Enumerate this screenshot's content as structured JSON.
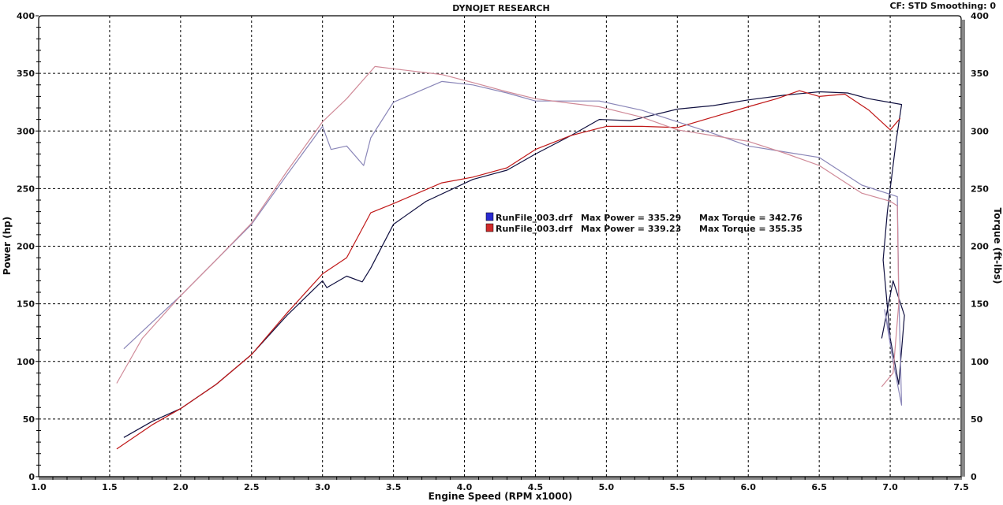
{
  "header": {
    "title": "DYNOJET RESEARCH",
    "settings": "CF: STD  Smoothing: 0"
  },
  "legend": [
    {
      "file": "RunFile_003.drf",
      "max_power_label": "Max Power = 335.29",
      "max_torque_label": "Max Torque = 342.76",
      "color": "#2a2ad0"
    },
    {
      "file": "RunFile_003.drf",
      "max_power_label": "Max Power = 339.23",
      "max_torque_label": "Max Torque = 355.35",
      "color": "#d02a2a"
    }
  ],
  "chart_data": {
    "type": "line",
    "title": "DYNOJET RESEARCH",
    "xlabel": "Engine Speed (RPM x1000)",
    "ylabel": "Power (hp)",
    "y2label": "Torque (ft-lbs)",
    "xlim": [
      1.0,
      7.5
    ],
    "ylim": [
      0,
      400
    ],
    "y2lim": [
      0,
      400
    ],
    "xticks": [
      "1.0",
      "1.5",
      "2.0",
      "2.5",
      "3.0",
      "3.5",
      "4.0",
      "4.5",
      "5.0",
      "5.5",
      "6.0",
      "6.5",
      "7.0",
      "7.5"
    ],
    "yticks": [
      "0",
      "50",
      "100",
      "150",
      "200",
      "250",
      "300",
      "350",
      "400"
    ],
    "grid": true,
    "legend_position": "center",
    "series": [
      {
        "name": "RunFile_003.drf Power",
        "axis": "left",
        "color": "#101040",
        "points": [
          [
            1.6,
            34
          ],
          [
            1.8,
            48
          ],
          [
            2.0,
            59
          ],
          [
            2.25,
            80
          ],
          [
            2.5,
            106
          ],
          [
            2.75,
            140
          ],
          [
            3.0,
            170
          ],
          [
            3.03,
            164
          ],
          [
            3.17,
            174
          ],
          [
            3.28,
            169
          ],
          [
            3.34,
            181
          ],
          [
            3.5,
            219
          ],
          [
            3.73,
            239
          ],
          [
            4.06,
            258
          ],
          [
            4.3,
            266
          ],
          [
            4.5,
            280
          ],
          [
            4.75,
            296
          ],
          [
            4.95,
            310
          ],
          [
            5.17,
            309
          ],
          [
            5.5,
            319
          ],
          [
            5.75,
            322
          ],
          [
            6.0,
            327
          ],
          [
            6.25,
            331
          ],
          [
            6.5,
            334
          ],
          [
            6.7,
            333
          ],
          [
            6.85,
            328
          ],
          [
            7.08,
            323
          ],
          [
            7.04,
            290
          ],
          [
            6.98,
            230
          ],
          [
            6.95,
            188
          ],
          [
            7.0,
            120
          ],
          [
            7.06,
            80
          ],
          [
            7.1,
            140
          ],
          [
            7.02,
            170
          ],
          [
            6.94,
            120
          ]
        ]
      },
      {
        "name": "RunFile_003.drf Power",
        "axis": "left",
        "color": "#c01818",
        "points": [
          [
            1.55,
            24
          ],
          [
            1.8,
            45
          ],
          [
            2.0,
            59
          ],
          [
            2.25,
            80
          ],
          [
            2.5,
            106
          ],
          [
            2.75,
            142
          ],
          [
            3.0,
            176
          ],
          [
            3.17,
            190
          ],
          [
            3.34,
            229
          ],
          [
            3.5,
            237
          ],
          [
            3.84,
            255
          ],
          [
            4.06,
            260
          ],
          [
            4.3,
            268
          ],
          [
            4.5,
            284
          ],
          [
            4.75,
            296
          ],
          [
            5.0,
            304
          ],
          [
            5.25,
            304
          ],
          [
            5.5,
            303
          ],
          [
            5.75,
            312
          ],
          [
            6.0,
            321
          ],
          [
            6.2,
            328
          ],
          [
            6.36,
            335
          ],
          [
            6.5,
            330
          ],
          [
            6.68,
            332
          ],
          [
            6.85,
            318
          ],
          [
            7.0,
            301
          ],
          [
            7.07,
            311
          ]
        ]
      },
      {
        "name": "RunFile_003.drf Torque",
        "axis": "right",
        "color": "#8a86b8",
        "points": [
          [
            1.6,
            111
          ],
          [
            1.73,
            126
          ],
          [
            2.0,
            157
          ],
          [
            2.25,
            188
          ],
          [
            2.5,
            219
          ],
          [
            2.75,
            262
          ],
          [
            3.0,
            304
          ],
          [
            3.06,
            284
          ],
          [
            3.17,
            287
          ],
          [
            3.29,
            270
          ],
          [
            3.34,
            294
          ],
          [
            3.5,
            325
          ],
          [
            3.84,
            343
          ],
          [
            4.06,
            340
          ],
          [
            4.3,
            333
          ],
          [
            4.5,
            326
          ],
          [
            4.75,
            326
          ],
          [
            4.95,
            326
          ],
          [
            5.25,
            318
          ],
          [
            5.5,
            308
          ],
          [
            5.75,
            298
          ],
          [
            6.0,
            287
          ],
          [
            6.25,
            282
          ],
          [
            6.5,
            277
          ],
          [
            6.8,
            253
          ],
          [
            7.05,
            243
          ],
          [
            7.06,
            160
          ],
          [
            7.08,
            62
          ],
          [
            7.02,
            100
          ],
          [
            6.96,
            145
          ],
          [
            7.0,
            120
          ]
        ]
      },
      {
        "name": "RunFile_003.drf Torque",
        "axis": "right",
        "color": "#d08a98",
        "points": [
          [
            1.55,
            81
          ],
          [
            1.73,
            120
          ],
          [
            2.0,
            157
          ],
          [
            2.25,
            188
          ],
          [
            2.5,
            220
          ],
          [
            2.75,
            265
          ],
          [
            3.0,
            308
          ],
          [
            3.17,
            328
          ],
          [
            3.37,
            356
          ],
          [
            3.5,
            354
          ],
          [
            3.84,
            349
          ],
          [
            4.06,
            342
          ],
          [
            4.3,
            334
          ],
          [
            4.5,
            328
          ],
          [
            4.75,
            324
          ],
          [
            4.95,
            321
          ],
          [
            5.25,
            312
          ],
          [
            5.5,
            301
          ],
          [
            5.75,
            296
          ],
          [
            6.0,
            291
          ],
          [
            6.25,
            281
          ],
          [
            6.5,
            270
          ],
          [
            6.8,
            246
          ],
          [
            7.0,
            239
          ],
          [
            7.05,
            235
          ],
          [
            7.06,
            150
          ],
          [
            7.02,
            90
          ],
          [
            6.94,
            78
          ]
        ]
      }
    ]
  }
}
